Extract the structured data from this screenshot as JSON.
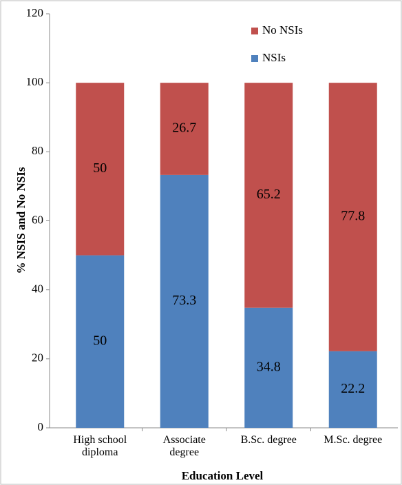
{
  "chart_data": {
    "type": "stacked_bar",
    "categories": [
      "High school\ndiploma",
      "Associate\ndegree",
      "B.Sc. degree",
      "M.Sc. degree"
    ],
    "series": [
      {
        "name": "NSIs",
        "color": "#4f81bd",
        "values": [
          50,
          73.3,
          34.8,
          22.2
        ]
      },
      {
        "name": "No NSIs",
        "color": "#c0504d",
        "values": [
          50,
          26.7,
          65.2,
          77.8
        ]
      }
    ],
    "ylim": [
      0,
      120
    ],
    "yticks": [
      0,
      20,
      40,
      60,
      80,
      100,
      120
    ],
    "y_label": "% NSIS and No NSIs",
    "x_label": "Education Level"
  }
}
